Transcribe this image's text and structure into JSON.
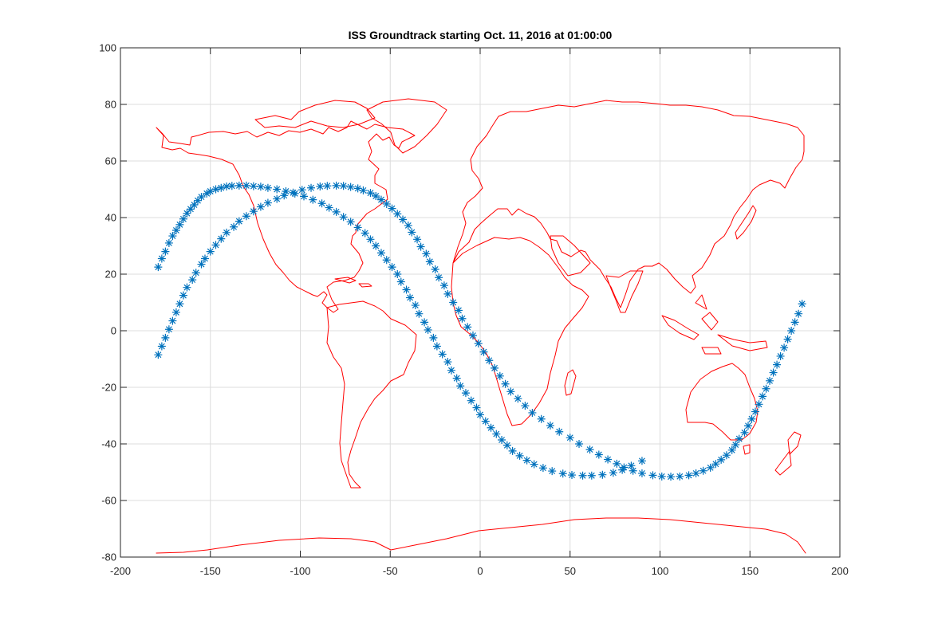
{
  "chart_data": {
    "type": "scatter",
    "title": "ISS Groundtrack starting Oct. 11, 2016 at 01:00:00",
    "xlabel": "",
    "ylabel": "",
    "xlim": [
      -200,
      200
    ],
    "ylim": [
      -80,
      100
    ],
    "xticks": [
      -200,
      -150,
      -100,
      -50,
      0,
      50,
      100,
      150,
      200
    ],
    "yticks": [
      -80,
      -60,
      -40,
      -20,
      0,
      20,
      40,
      60,
      80,
      100
    ],
    "grid": true,
    "marker": "asterisk",
    "colors": {
      "track": "#0072BD",
      "coastline": "#ff0000",
      "grid": "#dcdcdc",
      "axes": "#262626"
    },
    "series": [
      {
        "marker": "*",
        "color": "#0072BD",
        "x": [
          -179,
          -177,
          -175,
          -173,
          -171,
          -169,
          -167,
          -165,
          -163,
          -161,
          -159,
          -157,
          -155,
          -152,
          -150,
          -147,
          -144,
          -141,
          -138,
          -134,
          -130,
          -126,
          -122,
          -118,
          -113,
          -108,
          -103,
          -98,
          -93,
          -88,
          -84,
          -80,
          -76,
          -72,
          -68,
          -64,
          -61,
          -58,
          -55,
          -52,
          -49,
          -46,
          -44,
          -41,
          -39,
          -36,
          -34,
          -31,
          -29,
          -26,
          -24,
          -21,
          -18,
          -16,
          -13,
          -11,
          -8,
          -5,
          -2,
          0,
          3,
          6,
          9,
          12,
          15,
          18,
          22,
          26,
          30,
          35,
          40,
          46,
          51,
          57,
          62,
          68,
          74,
          79,
          84,
          90
        ],
        "y": [
          22.5,
          25.5,
          28,
          31,
          33.5,
          35.5,
          37.5,
          39.5,
          41.5,
          43,
          44.5,
          46,
          47.3,
          48.5,
          49.3,
          50,
          50.5,
          51,
          51.2,
          51.3,
          51.3,
          51.1,
          50.9,
          50.5,
          50,
          49.3,
          48.5,
          47.5,
          46.3,
          45,
          43.5,
          42,
          40.2,
          38.5,
          36.5,
          34.5,
          32.3,
          30,
          27.5,
          25,
          22.5,
          20,
          17.3,
          14.5,
          11.7,
          9,
          6,
          3,
          0.3,
          -2.5,
          -5.5,
          -8.3,
          -11,
          -14,
          -16.8,
          -19.5,
          -22,
          -24.7,
          -27.2,
          -29.7,
          -32,
          -34.3,
          -36.5,
          -38.6,
          -40.5,
          -42.5,
          -44.2,
          -45.8,
          -47.2,
          -48.5,
          -49.6,
          -50.5,
          -51,
          -51.2,
          -51.2,
          -50.9,
          -50.2,
          -49.2,
          -47.7,
          -46
        ]
      },
      {
        "marker": "*",
        "color": "#0072BD",
        "x": [
          -179,
          -177,
          -175,
          -173,
          -171,
          -169,
          -167,
          -165,
          -163,
          -160,
          -158,
          -155,
          -153,
          -150,
          -147,
          -144,
          -141,
          -137,
          -134,
          -130,
          -126,
          -122,
          -118,
          -113,
          -109,
          -104,
          -99,
          -94,
          -89,
          -85,
          -80,
          -76,
          -72,
          -68,
          -65,
          -61,
          -58,
          -55,
          -52,
          -49,
          -46,
          -43,
          -40,
          -38,
          -35,
          -33,
          -30,
          -28,
          -25,
          -23,
          -20,
          -18,
          -15,
          -12,
          -10,
          -7,
          -4,
          -1,
          2,
          5,
          8,
          11,
          14,
          17,
          21,
          25,
          29,
          34,
          39,
          44,
          50,
          55,
          61,
          66,
          71,
          76,
          80,
          85,
          90,
          96,
          101,
          106,
          111,
          116,
          120,
          124,
          128,
          131,
          134,
          137,
          140,
          142,
          144,
          147,
          149,
          151,
          153,
          155,
          157,
          159,
          161,
          163,
          165,
          167,
          169,
          171,
          173,
          175,
          177,
          179
        ],
        "y": [
          -8.5,
          -5.5,
          -2.5,
          0.5,
          3.5,
          6.5,
          9.5,
          12.5,
          15.3,
          18,
          20.5,
          23.5,
          25.5,
          28,
          30.3,
          32.5,
          34.7,
          36.7,
          38.7,
          40.5,
          42.2,
          43.8,
          45.2,
          46.6,
          47.8,
          48.8,
          49.8,
          50.5,
          51,
          51.2,
          51.3,
          51.2,
          50.8,
          50.3,
          49.6,
          48.7,
          47.6,
          46.3,
          44.8,
          43.2,
          41.3,
          39.3,
          37.2,
          34.8,
          32.3,
          29.7,
          27.2,
          24.4,
          21.7,
          18.8,
          16,
          13,
          10,
          7.2,
          4.3,
          1.3,
          -1.7,
          -4.5,
          -7.5,
          -10.5,
          -13.2,
          -16,
          -18.8,
          -21.5,
          -24,
          -26.5,
          -29,
          -31.2,
          -33.5,
          -35.7,
          -37.8,
          -40,
          -42,
          -43.8,
          -45.5,
          -47,
          -48.3,
          -49.5,
          -50.4,
          -51.1,
          -51.5,
          -51.6,
          -51.5,
          -51.1,
          -50.4,
          -49.5,
          -48.4,
          -47.1,
          -45.6,
          -44,
          -42.2,
          -40.3,
          -38.2,
          -36,
          -33.6,
          -31.2,
          -28.6,
          -26,
          -23.2,
          -20.5,
          -17.7,
          -14.8,
          -12,
          -9,
          -6,
          -3,
          0,
          3,
          6,
          9.5
        ]
      }
    ]
  }
}
